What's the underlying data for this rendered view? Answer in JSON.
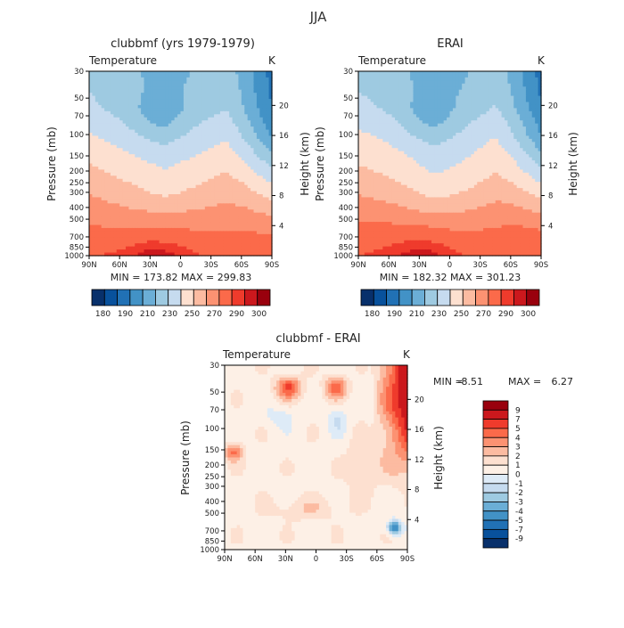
{
  "figure_title": "JJA",
  "chart_data": [
    {
      "type": "heatmap",
      "title": "clubbmf (yrs 1979-1979)",
      "variable_label": "Temperature",
      "units_label": "K",
      "xlabel": "",
      "ylabel": "Pressure (mb)",
      "right_ylabel": "Height (km)",
      "x_ticks": [
        "90N",
        "60N",
        "30N",
        "0",
        "30S",
        "60S",
        "90S"
      ],
      "y_ticks": [
        "30",
        "50",
        "70",
        "100",
        "150",
        "200",
        "250",
        "300",
        "400",
        "500",
        "700",
        "850",
        "1000"
      ],
      "right_ticks": [
        "20",
        "16",
        "12",
        "8",
        "4"
      ],
      "x_range": [
        90,
        -90
      ],
      "y_range_mb": [
        1000,
        30
      ],
      "min_max_text": "MIN = 173.82   MAX = 299.83",
      "min": 173.82,
      "max": 299.83,
      "colorbar_labels": [
        "180",
        "190",
        "210",
        "230",
        "250",
        "270",
        "290",
        "300"
      ],
      "colorbar_colors": [
        "#08306b",
        "#08519c",
        "#2171b5",
        "#4292c6",
        "#6baed6",
        "#9ecae1",
        "#c6dbef",
        "#fde0d0",
        "#fcbba1",
        "#fc9272",
        "#fb6a4a",
        "#ef3b2c",
        "#cb181d",
        "#99000d"
      ],
      "palette": "blue-to-red diverging"
    },
    {
      "type": "heatmap",
      "title": "ERAI",
      "variable_label": "Temperature",
      "units_label": "K",
      "xlabel": "",
      "ylabel": "Pressure (mb)",
      "right_ylabel": "Height (km)",
      "x_ticks": [
        "90N",
        "60N",
        "30N",
        "0",
        "30S",
        "60S",
        "90S"
      ],
      "y_ticks": [
        "30",
        "50",
        "70",
        "100",
        "150",
        "200",
        "250",
        "300",
        "400",
        "500",
        "700",
        "850",
        "1000"
      ],
      "right_ticks": [
        "20",
        "16",
        "12",
        "8",
        "4"
      ],
      "x_range": [
        90,
        -90
      ],
      "y_range_mb": [
        1000,
        30
      ],
      "min_max_text": "MIN = 182.32   MAX = 301.23",
      "min": 182.32,
      "max": 301.23,
      "colorbar_labels": [
        "180",
        "190",
        "210",
        "230",
        "250",
        "270",
        "290",
        "300"
      ],
      "colorbar_colors": [
        "#08306b",
        "#08519c",
        "#2171b5",
        "#4292c6",
        "#6baed6",
        "#9ecae1",
        "#c6dbef",
        "#fde0d0",
        "#fcbba1",
        "#fc9272",
        "#fb6a4a",
        "#ef3b2c",
        "#cb181d",
        "#99000d"
      ],
      "palette": "blue-to-red diverging"
    },
    {
      "type": "heatmap",
      "title": "clubbmf - ERAI",
      "variable_label": "Temperature",
      "units_label": "K",
      "xlabel": "",
      "ylabel": "Pressure (mb)",
      "right_ylabel": "Height (km)",
      "x_ticks": [
        "90N",
        "60N",
        "30N",
        "0",
        "30S",
        "60S",
        "90S"
      ],
      "y_ticks": [
        "30",
        "50",
        "70",
        "100",
        "150",
        "200",
        "250",
        "300",
        "400",
        "500",
        "700",
        "850",
        "1000"
      ],
      "right_ticks": [
        "20",
        "16",
        "12",
        "8",
        "4"
      ],
      "x_range": [
        90,
        -90
      ],
      "y_range_mb": [
        1000,
        30
      ],
      "min_label": "MIN =",
      "min_value": "-8.51",
      "max_label": "MAX =",
      "max_value": "6.27",
      "min": -8.51,
      "max": 6.27,
      "colorbar_labels": [
        "9",
        "7",
        "5",
        "4",
        "3",
        "2",
        "1",
        "0",
        "-1",
        "-2",
        "-3",
        "-4",
        "-5",
        "-7",
        "-9"
      ],
      "colorbar_colors": [
        "#99000d",
        "#cb181d",
        "#ef3b2c",
        "#fb6a4a",
        "#fc9272",
        "#fcbba1",
        "#fde0d0",
        "#fdf0e6",
        "#deebf7",
        "#c6dbef",
        "#9ecae1",
        "#6baed6",
        "#4292c6",
        "#2171b5",
        "#08519c",
        "#08306b"
      ],
      "palette": "blue-to-red diverging"
    }
  ]
}
